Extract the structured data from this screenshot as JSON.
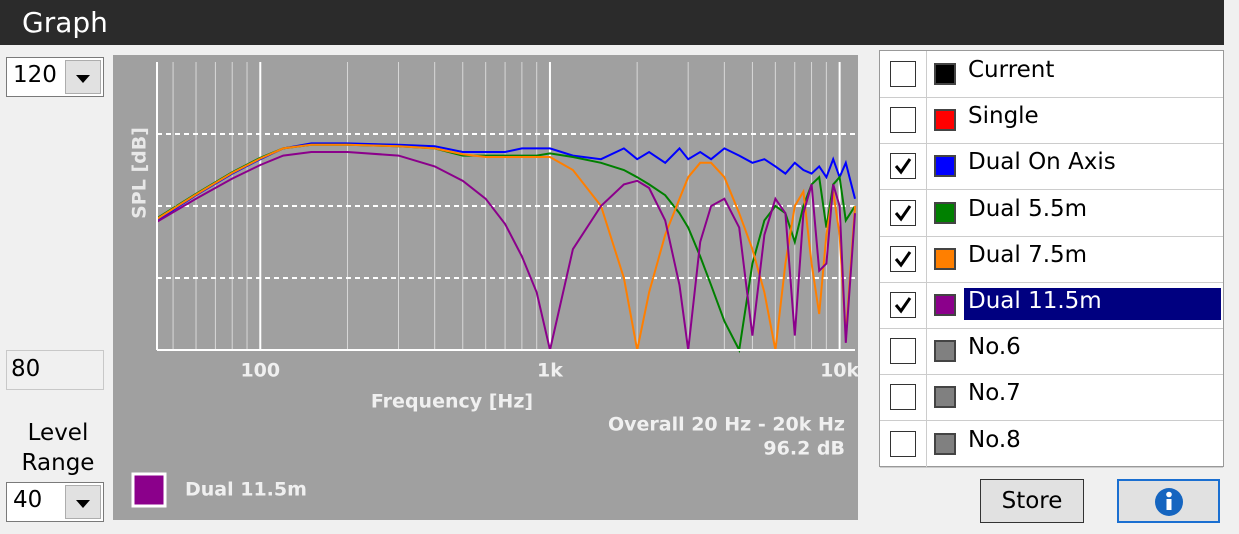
{
  "header": {
    "title": "Graph"
  },
  "controls": {
    "max_level": "120",
    "min_level": "80",
    "range_label": "Level Range",
    "range": "40"
  },
  "chart_data": {
    "type": "line",
    "x_label": "Frequency [Hz]",
    "y_label": "SPL [dB]",
    "log_x": true,
    "xlim": [
      44,
      11300
    ],
    "ylim": [
      80,
      120
    ],
    "xticks": [
      100,
      {
        "value": 1000,
        "label": "1k"
      },
      {
        "value": 10000,
        "label": "10k"
      }
    ],
    "xminor": [
      50,
      60,
      70,
      80,
      90,
      200,
      300,
      400,
      500,
      600,
      700,
      800,
      900,
      2000,
      3000,
      4000,
      5000,
      6000,
      7000,
      8000,
      9000
    ],
    "hgrid": [
      90,
      100,
      110
    ],
    "x": [
      44,
      60,
      80,
      100,
      120,
      150,
      200,
      300,
      400,
      500,
      600,
      700,
      800,
      900,
      1000,
      1200,
      1500,
      1800,
      2000,
      2200,
      2500,
      2800,
      3000,
      3300,
      3600,
      4000,
      4500,
      5000,
      5500,
      6000,
      6500,
      7000,
      7500,
      8000,
      8500,
      9000,
      9500,
      10000,
      10500,
      11300
    ],
    "series": [
      {
        "name": "Dual On Axis",
        "color": "#0000ff",
        "values": [
          98,
          101.5,
          104.5,
          106.5,
          108,
          108.7,
          108.7,
          108.5,
          108.3,
          107.5,
          107.5,
          107.5,
          108,
          108,
          108,
          107,
          106.5,
          108,
          106.5,
          107.5,
          106,
          108,
          106.5,
          107.5,
          106.5,
          108,
          107,
          106,
          106.5,
          105.5,
          104.5,
          106,
          105,
          104.5,
          105.5,
          104,
          106.5,
          104,
          106,
          101
        ]
      },
      {
        "name": "Dual 5.5m",
        "color": "#008000",
        "values": [
          98.3,
          101.7,
          104.7,
          106.7,
          108,
          108.5,
          108.5,
          108.3,
          108,
          107,
          107,
          107,
          107,
          107,
          107.3,
          106.8,
          106,
          105,
          104,
          103,
          101.5,
          99,
          97,
          93,
          89,
          84,
          80,
          92,
          98,
          100,
          99,
          95,
          100,
          103,
          104,
          97,
          103,
          104,
          98,
          100
        ]
      },
      {
        "name": "Dual 7.5m",
        "color": "#ff7f00",
        "values": [
          98.2,
          101.6,
          104.6,
          106.6,
          108,
          108.5,
          108.5,
          108.3,
          108,
          107.2,
          106.8,
          106.8,
          106.8,
          106.8,
          106.8,
          105,
          100,
          90,
          80,
          88,
          96,
          101,
          104,
          106,
          106,
          104,
          99,
          94,
          88,
          80,
          92,
          100,
          102,
          92,
          85,
          96,
          102,
          96,
          82,
          100
        ]
      },
      {
        "name": "Dual 11.5m",
        "color": "#8b008b",
        "values": [
          97.8,
          101,
          103.8,
          105.7,
          107,
          107.5,
          107.5,
          107,
          105.5,
          103.5,
          101,
          97.5,
          93,
          88,
          80,
          94,
          100,
          103,
          103.5,
          102.5,
          98,
          89,
          80,
          95,
          100,
          101,
          97,
          82,
          96,
          101,
          99,
          82,
          99,
          103,
          91,
          92,
          103,
          100,
          81,
          99
        ]
      }
    ],
    "legend_series": 3,
    "annotation": [
      "Overall 20 Hz - 20k Hz",
      "96.2 dB"
    ]
  },
  "curve_list": {
    "selected": 5,
    "rows": [
      {
        "label": "Current",
        "color": "#000000",
        "checked": false
      },
      {
        "label": "Single",
        "color": "#ff0000",
        "checked": false
      },
      {
        "label": "Dual On Axis",
        "color": "#0000ff",
        "checked": true
      },
      {
        "label": "Dual 5.5m",
        "color": "#008000",
        "checked": true
      },
      {
        "label": "Dual 7.5m",
        "color": "#ff7f00",
        "checked": true
      },
      {
        "label": "Dual 11.5m",
        "color": "#8b008b",
        "checked": true
      },
      {
        "label": "No.6",
        "color": "#808080",
        "checked": false
      },
      {
        "label": "No.7",
        "color": "#808080",
        "checked": false
      },
      {
        "label": "No.8",
        "color": "#808080",
        "checked": false
      }
    ]
  },
  "buttons": {
    "store": "Store"
  }
}
